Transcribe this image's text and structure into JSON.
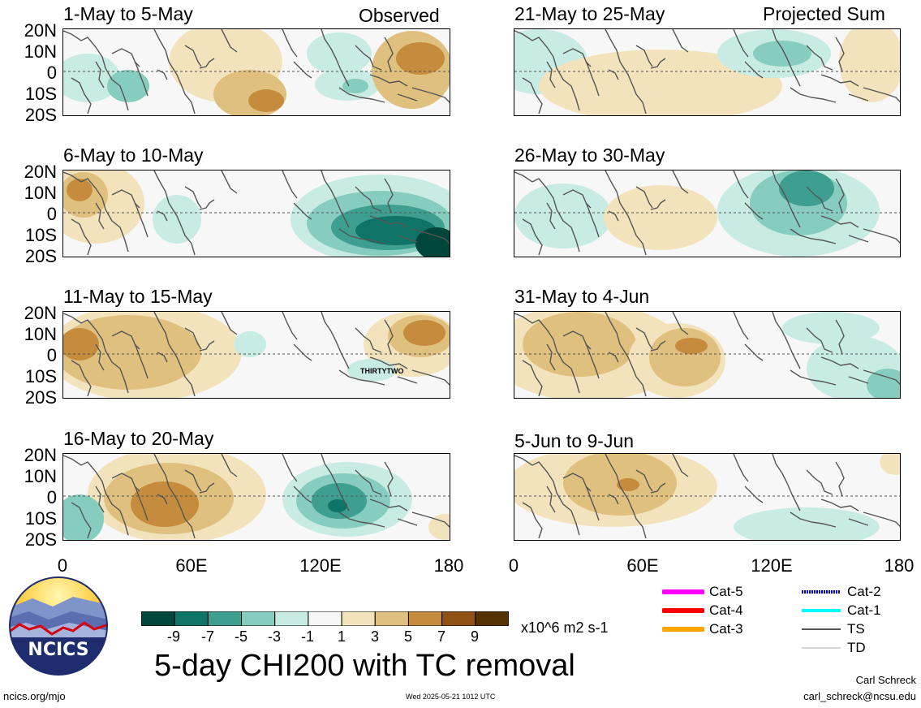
{
  "panels": {
    "p0": {
      "title": "1-May to 5-May",
      "tag": "Observed"
    },
    "p1": {
      "title": "6-May to 10-May",
      "tag": ""
    },
    "p2": {
      "title": "11-May to 15-May",
      "tag": "",
      "storm_label": "THIRTYTWO"
    },
    "p3": {
      "title": "16-May to 20-May",
      "tag": ""
    },
    "p4": {
      "title": "21-May to 25-May",
      "tag": "Projected Sum"
    },
    "p5": {
      "title": "26-May to 30-May",
      "tag": ""
    },
    "p6": {
      "title": "31-May to 4-Jun",
      "tag": ""
    },
    "p7": {
      "title": "5-Jun to 9-Jun",
      "tag": ""
    }
  },
  "lat_labels": [
    "20N",
    "10N",
    "0",
    "10S",
    "20S"
  ],
  "lon_labels": [
    "0",
    "60E",
    "120E",
    "180"
  ],
  "colorbar": {
    "ticks": [
      "-9",
      "-7",
      "-5",
      "-3",
      "-1",
      "1",
      "3",
      "5",
      "7",
      "9"
    ],
    "units": "x10^6 m2 s-1",
    "colors": [
      "#00463a",
      "#0e7467",
      "#3e9e90",
      "#86cdbf",
      "#c8ebe3",
      "#f6f6f6",
      "#f3e3bc",
      "#e0c07f",
      "#c58c3e",
      "#8f5114",
      "#553203"
    ]
  },
  "title": "5-day CHI200 with TC removal",
  "logo_text": "NCICS",
  "footer": {
    "url": "ncics.org/mjo",
    "timestamp": "Wed 2025-05-21 1012 UTC",
    "author": "Carl Schreck",
    "email": "carl_schreck@ncsu.edu"
  },
  "tc_legend": [
    {
      "label": "Cat-5",
      "color": "#ff00ff"
    },
    {
      "label": "Cat-4",
      "color": "#ff0000"
    },
    {
      "label": "Cat-3",
      "color": "#ffa500"
    },
    {
      "label": "Cat-2",
      "color": "#0000cd"
    },
    {
      "label": "Cat-1",
      "color": "#00ffff"
    },
    {
      "label": "TS",
      "color": "#555555"
    },
    {
      "label": "TD",
      "color": "#aaaaaa"
    }
  ]
}
